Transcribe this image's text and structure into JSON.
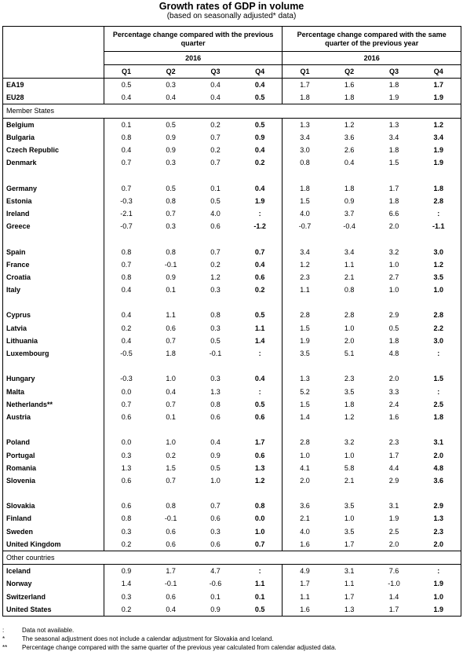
{
  "title": "Growth rates of GDP in volume",
  "subtitle": "(based on seasonally adjusted* data)",
  "header": {
    "left_title": "Percentage change compared with the previous quarter",
    "right_title": "Percentage change compared with the same quarter of the previous year",
    "year": "2016",
    "quarters": [
      "Q1",
      "Q2",
      "Q3",
      "Q4"
    ]
  },
  "aggregates": [
    {
      "name": "EA19",
      "qq": [
        "0.5",
        "0.3",
        "0.4",
        "0.4"
      ],
      "yy": [
        "1.7",
        "1.6",
        "1.8",
        "1.7"
      ]
    },
    {
      "name": "EU28",
      "qq": [
        "0.4",
        "0.4",
        "0.4",
        "0.5"
      ],
      "yy": [
        "1.8",
        "1.8",
        "1.9",
        "1.9"
      ]
    }
  ],
  "member_states_label": "Member States",
  "member_states": [
    {
      "name": "Belgium",
      "qq": [
        "0.1",
        "0.5",
        "0.2",
        "0.5"
      ],
      "yy": [
        "1.3",
        "1.2",
        "1.3",
        "1.2"
      ]
    },
    {
      "name": "Bulgaria",
      "qq": [
        "0.8",
        "0.9",
        "0.7",
        "0.9"
      ],
      "yy": [
        "3.4",
        "3.6",
        "3.4",
        "3.4"
      ]
    },
    {
      "name": "Czech Republic",
      "qq": [
        "0.4",
        "0.9",
        "0.2",
        "0.4"
      ],
      "yy": [
        "3.0",
        "2.6",
        "1.8",
        "1.9"
      ]
    },
    {
      "name": "Denmark",
      "qq": [
        "0.7",
        "0.3",
        "0.7",
        "0.2"
      ],
      "yy": [
        "0.8",
        "0.4",
        "1.5",
        "1.9"
      ]
    },
    {
      "name": "Germany",
      "qq": [
        "0.7",
        "0.5",
        "0.1",
        "0.4"
      ],
      "yy": [
        "1.8",
        "1.8",
        "1.7",
        "1.8"
      ]
    },
    {
      "name": "Estonia",
      "qq": [
        "-0.3",
        "0.8",
        "0.5",
        "1.9"
      ],
      "yy": [
        "1.5",
        "0.9",
        "1.8",
        "2.8"
      ]
    },
    {
      "name": "Ireland",
      "qq": [
        "-2.1",
        "0.7",
        "4.0",
        ":"
      ],
      "yy": [
        "4.0",
        "3.7",
        "6.6",
        ":"
      ]
    },
    {
      "name": "Greece",
      "qq": [
        "-0.7",
        "0.3",
        "0.6",
        "-1.2"
      ],
      "yy": [
        "-0.7",
        "-0.4",
        "2.0",
        "-1.1"
      ]
    },
    {
      "name": "Spain",
      "qq": [
        "0.8",
        "0.8",
        "0.7",
        "0.7"
      ],
      "yy": [
        "3.4",
        "3.4",
        "3.2",
        "3.0"
      ]
    },
    {
      "name": "France",
      "qq": [
        "0.7",
        "-0.1",
        "0.2",
        "0.4"
      ],
      "yy": [
        "1.2",
        "1.1",
        "1.0",
        "1.2"
      ]
    },
    {
      "name": "Croatia",
      "qq": [
        "0.8",
        "0.9",
        "1.2",
        "0.6"
      ],
      "yy": [
        "2.3",
        "2.1",
        "2.7",
        "3.5"
      ]
    },
    {
      "name": "Italy",
      "qq": [
        "0.4",
        "0.1",
        "0.3",
        "0.2"
      ],
      "yy": [
        "1.1",
        "0.8",
        "1.0",
        "1.0"
      ]
    },
    {
      "name": "Cyprus",
      "qq": [
        "0.4",
        "1.1",
        "0.8",
        "0.5"
      ],
      "yy": [
        "2.8",
        "2.8",
        "2.9",
        "2.8"
      ]
    },
    {
      "name": "Latvia",
      "qq": [
        "0.2",
        "0.6",
        "0.3",
        "1.1"
      ],
      "yy": [
        "1.5",
        "1.0",
        "0.5",
        "2.2"
      ]
    },
    {
      "name": "Lithuania",
      "qq": [
        "0.4",
        "0.7",
        "0.5",
        "1.4"
      ],
      "yy": [
        "1.9",
        "2.0",
        "1.8",
        "3.0"
      ]
    },
    {
      "name": "Luxembourg",
      "qq": [
        "-0.5",
        "1.8",
        "-0.1",
        ":"
      ],
      "yy": [
        "3.5",
        "5.1",
        "4.8",
        ":"
      ]
    },
    {
      "name": "Hungary",
      "qq": [
        "-0.3",
        "1.0",
        "0.3",
        "0.4"
      ],
      "yy": [
        "1.3",
        "2.3",
        "2.0",
        "1.5"
      ]
    },
    {
      "name": "Malta",
      "qq": [
        "0.0",
        "0.4",
        "1.3",
        ":"
      ],
      "yy": [
        "5.2",
        "3.5",
        "3.3",
        ":"
      ]
    },
    {
      "name": "Netherlands**",
      "qq": [
        "0.7",
        "0.7",
        "0.8",
        "0.5"
      ],
      "yy": [
        "1.5",
        "1.8",
        "2.4",
        "2.5"
      ]
    },
    {
      "name": "Austria",
      "qq": [
        "0.6",
        "0.1",
        "0.6",
        "0.6"
      ],
      "yy": [
        "1.4",
        "1.2",
        "1.6",
        "1.8"
      ]
    },
    {
      "name": "Poland",
      "qq": [
        "0.0",
        "1.0",
        "0.4",
        "1.7"
      ],
      "yy": [
        "2.8",
        "3.2",
        "2.3",
        "3.1"
      ]
    },
    {
      "name": "Portugal",
      "qq": [
        "0.3",
        "0.2",
        "0.9",
        "0.6"
      ],
      "yy": [
        "1.0",
        "1.0",
        "1.7",
        "2.0"
      ]
    },
    {
      "name": "Romania",
      "qq": [
        "1.3",
        "1.5",
        "0.5",
        "1.3"
      ],
      "yy": [
        "4.1",
        "5.8",
        "4.4",
        "4.8"
      ]
    },
    {
      "name": "Slovenia",
      "qq": [
        "0.6",
        "0.7",
        "1.0",
        "1.2"
      ],
      "yy": [
        "2.0",
        "2.1",
        "2.9",
        "3.6"
      ]
    },
    {
      "name": "Slovakia",
      "qq": [
        "0.6",
        "0.8",
        "0.7",
        "0.8"
      ],
      "yy": [
        "3.6",
        "3.5",
        "3.1",
        "2.9"
      ]
    },
    {
      "name": "Finland",
      "qq": [
        "0.8",
        "-0.1",
        "0.6",
        "0.0"
      ],
      "yy": [
        "2.1",
        "1.0",
        "1.9",
        "1.3"
      ]
    },
    {
      "name": "Sweden",
      "qq": [
        "0.3",
        "0.6",
        "0.3",
        "1.0"
      ],
      "yy": [
        "4.0",
        "3.5",
        "2.5",
        "2.3"
      ]
    },
    {
      "name": "United Kingdom",
      "qq": [
        "0.2",
        "0.6",
        "0.6",
        "0.7"
      ],
      "yy": [
        "1.6",
        "1.7",
        "2.0",
        "2.0"
      ]
    }
  ],
  "other_countries_label": "Other countries",
  "other_countries": [
    {
      "name": "Iceland",
      "qq": [
        "0.9",
        "1.7",
        "4.7",
        ":"
      ],
      "yy": [
        "4.9",
        "3.1",
        "7.6",
        ":"
      ]
    },
    {
      "name": "Norway",
      "qq": [
        "1.4",
        "-0.1",
        "-0.6",
        "1.1"
      ],
      "yy": [
        "1.7",
        "1.1",
        "-1.0",
        "1.9"
      ]
    },
    {
      "name": "Switzerland",
      "qq": [
        "0.3",
        "0.6",
        "0.1",
        "0.1"
      ],
      "yy": [
        "1.1",
        "1.7",
        "1.4",
        "1.0"
      ]
    },
    {
      "name": "United States",
      "qq": [
        "0.2",
        "0.4",
        "0.9",
        "0.5"
      ],
      "yy": [
        "1.6",
        "1.3",
        "1.7",
        "1.9"
      ]
    }
  ],
  "notes": [
    {
      "symbol": ":",
      "text": "Data not available."
    },
    {
      "symbol": "*",
      "text": "The seasonal adjustment does not include a calendar adjustment for Slovakia and Iceland."
    },
    {
      "symbol": "**",
      "text": "Percentage change compared with the same quarter of the previous year calculated from calendar adjusted data."
    }
  ]
}
